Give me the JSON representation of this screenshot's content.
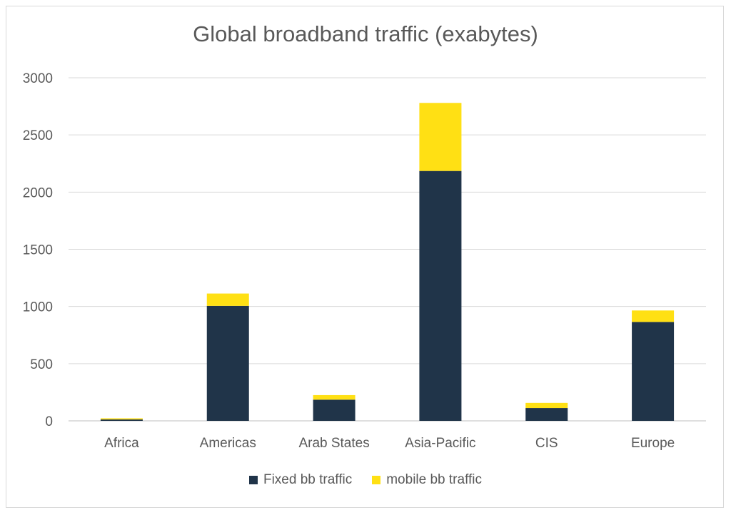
{
  "chart_data": {
    "type": "bar",
    "stacked": true,
    "title": "Global broadband traffic (exabytes)",
    "xlabel": "",
    "ylabel": "",
    "ylim": [
      0,
      3000
    ],
    "yticks": [
      "0",
      "500",
      "1000",
      "1500",
      "2000",
      "2500",
      "3000"
    ],
    "categories": [
      "Africa",
      "Americas",
      "Arab States",
      "Asia-Pacific",
      "CIS",
      "Europe"
    ],
    "series": [
      {
        "name": "Fixed bb traffic",
        "color": "#203449",
        "values": [
          12,
          1005,
          185,
          2185,
          112,
          865
        ]
      },
      {
        "name": "mobile bb traffic",
        "color": "#ffe014",
        "values": [
          10,
          108,
          40,
          595,
          45,
          100
        ]
      }
    ],
    "grid": true,
    "legend_position": "bottom"
  }
}
